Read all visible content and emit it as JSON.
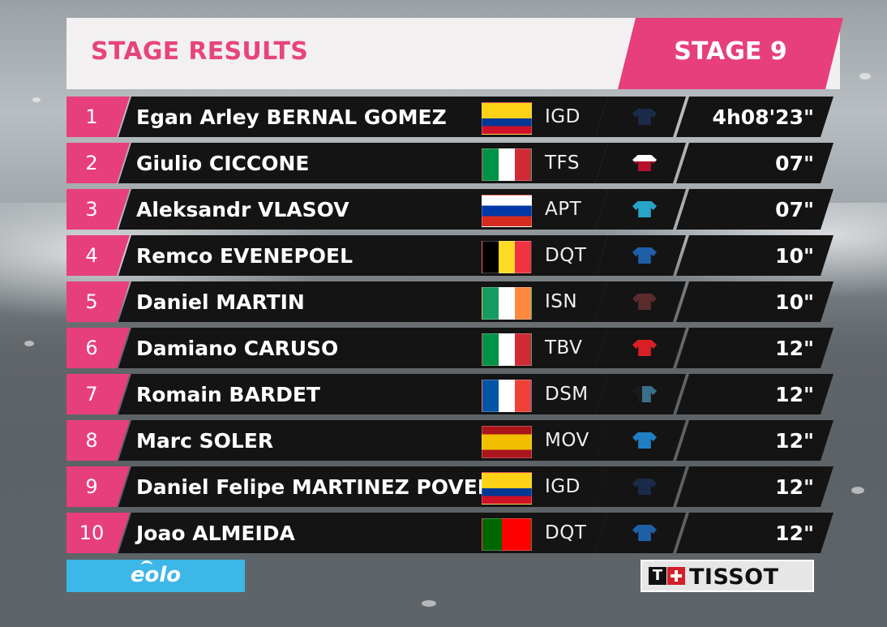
{
  "header": {
    "title": "STAGE RESULTS",
    "stage": "STAGE 9"
  },
  "colors": {
    "accent": "#e73f7c",
    "row_bg": "#141414",
    "header_bg": "#f2f0f0",
    "sponsor_eolo": "#3db6e8"
  },
  "results": [
    {
      "rank": "1",
      "name": "Egan Arley BERNAL GOMEZ",
      "flag": "colombia-flag-icon",
      "team": "IGD",
      "jersey": "ineos-jersey-icon",
      "time": "4h08'23\""
    },
    {
      "rank": "2",
      "name": "Giulio CICCONE",
      "flag": "italy-flag-icon",
      "team": "TFS",
      "jersey": "trek-jersey-icon",
      "time": "07\""
    },
    {
      "rank": "3",
      "name": "Aleksandr VLASOV",
      "flag": "russia-flag-icon",
      "team": "APT",
      "jersey": "astana-jersey-icon",
      "time": "07\""
    },
    {
      "rank": "4",
      "name": "Remco EVENEPOEL",
      "flag": "belgium-flag-icon",
      "team": "DQT",
      "jersey": "deceuninck-jersey-icon",
      "time": "10\""
    },
    {
      "rank": "5",
      "name": "Daniel MARTIN",
      "flag": "ireland-flag-icon",
      "team": "ISN",
      "jersey": "israel-jersey-icon",
      "time": "10\""
    },
    {
      "rank": "6",
      "name": "Damiano CARUSO",
      "flag": "italy-flag-icon",
      "team": "TBV",
      "jersey": "bahrain-jersey-icon",
      "time": "12\""
    },
    {
      "rank": "7",
      "name": "Romain BARDET",
      "flag": "france-flag-icon",
      "team": "DSM",
      "jersey": "dsm-jersey-icon",
      "time": "12\""
    },
    {
      "rank": "8",
      "name": "Marc SOLER",
      "flag": "spain-flag-icon",
      "team": "MOV",
      "jersey": "movistar-jersey-icon",
      "time": "12\""
    },
    {
      "rank": "9",
      "name": "Daniel Felipe MARTINEZ POVEDA",
      "flag": "colombia-flag-icon",
      "team": "IGD",
      "jersey": "ineos-jersey-icon",
      "time": "12\""
    },
    {
      "rank": "10",
      "name": "Joao ALMEIDA",
      "flag": "portugal-flag-icon",
      "team": "DQT",
      "jersey": "deceuninck-jersey-icon",
      "time": "12\""
    }
  ],
  "sponsors": {
    "left": "eolo",
    "right": "TISSOT",
    "right_mark": "T"
  }
}
